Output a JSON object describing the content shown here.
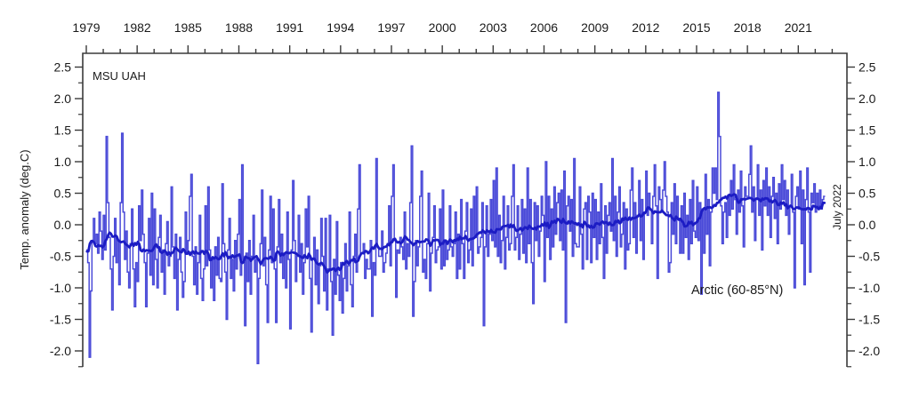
{
  "chart_data": {
    "type": "line",
    "title": "MSU UAH",
    "region_label": "Arctic (60-85°N)",
    "end_label": "July 2022",
    "ylabel": "Temp. anomaly (deg.C)",
    "x_start": "1979-01",
    "x_end": "2022-07",
    "xlim": [
      1978.79,
      2023.87
    ],
    "ylim": [
      -2.25,
      2.72
    ],
    "x_major_ticks": [
      1979,
      1982,
      1985,
      1988,
      1991,
      1994,
      1997,
      2000,
      2003,
      2006,
      2009,
      2012,
      2015,
      2018,
      2021
    ],
    "x_minor_tick_years": [
      1979,
      2023
    ],
    "y_major_ticks": [
      2.5,
      2.0,
      1.5,
      1.0,
      0.5,
      0.0,
      -0.5,
      -1.0,
      -1.5,
      -2.0
    ],
    "y_minor_tick_step": 0.25,
    "grid": false,
    "legend": "none",
    "axis_color": "#3a3a3a",
    "text_color": "#1a1a1a",
    "series": [
      {
        "name": "monthly-temperature-anomaly",
        "style": "thin-step",
        "color": "#4a4ad8",
        "values": [
          -0.4,
          -0.6,
          -2.1,
          -1.05,
          -0.25,
          0.1,
          -0.3,
          -0.15,
          -0.45,
          0.2,
          -0.1,
          -0.55,
          0.15,
          -0.4,
          1.4,
          0.35,
          -0.2,
          -0.7,
          -1.35,
          -0.5,
          0.1,
          -0.6,
          -0.25,
          -0.95,
          0.35,
          1.45,
          0.2,
          -0.55,
          -0.1,
          -0.75,
          -1.0,
          -0.3,
          0.25,
          -0.7,
          -1.3,
          -0.6,
          -0.9,
          0.3,
          -0.25,
          0.55,
          -0.15,
          -0.6,
          -1.3,
          -0.45,
          0.1,
          -0.8,
          0.5,
          -0.95,
          0.25,
          -0.55,
          -1.0,
          -0.2,
          0.15,
          -0.75,
          -0.4,
          -1.1,
          -0.3,
          0.05,
          -0.65,
          -0.5,
          0.6,
          -0.35,
          -0.85,
          -0.15,
          -1.35,
          -0.55,
          -0.2,
          -0.75,
          -1.15,
          -0.9,
          0.2,
          -0.45,
          -0.25,
          0.45,
          0.8,
          -0.5,
          -0.95,
          -0.35,
          -1.1,
          -0.6,
          0.15,
          -0.85,
          -1.2,
          -0.7,
          0.3,
          -0.65,
          0.6,
          -0.4,
          -1.0,
          -0.55,
          -1.2,
          -0.35,
          -0.8,
          -0.2,
          -0.85,
          -0.9,
          0.65,
          -0.3,
          -0.75,
          -1.5,
          -0.4,
          0.1,
          -0.85,
          -0.55,
          -1.05,
          -0.25,
          -0.7,
          -0.15,
          0.4,
          -0.8,
          0.95,
          -0.6,
          -1.6,
          -0.45,
          -0.9,
          -0.25,
          -1.1,
          -0.5,
          0.15,
          -0.75,
          -0.55,
          -2.2,
          -0.85,
          -0.3,
          0.55,
          -0.65,
          -0.2,
          -0.95,
          -1.55,
          -0.4,
          0.45,
          -0.6,
          0.25,
          -0.7,
          -1.55,
          -0.35,
          0.4,
          -0.6,
          -0.15,
          -0.85,
          -0.45,
          -1.0,
          0.2,
          -0.55,
          -1.65,
          -0.4,
          0.7,
          -0.25,
          -0.9,
          -0.5,
          0.15,
          -0.75,
          -0.3,
          -1.1,
          -0.6,
          0.25,
          -0.35,
          0.45,
          -0.85,
          -1.7,
          -0.55,
          -0.2,
          -0.95,
          -0.4,
          -1.25,
          -0.65,
          0.1,
          -0.5,
          -1.05,
          0.1,
          -1.35,
          -0.7,
          0.15,
          -0.9,
          -1.75,
          -0.55,
          -1.1,
          0.05,
          -0.8,
          -1.2,
          -0.6,
          -1.4,
          -0.85,
          -0.3,
          -1.05,
          -0.65,
          0.2,
          -0.95,
          -1.3,
          -0.5,
          -0.15,
          -0.75,
          0.25,
          0.95,
          -0.45,
          -0.45,
          -0.3,
          -0.85,
          -0.55,
          -0.7,
          -0.7,
          -0.25,
          -1.45,
          -0.6,
          -0.8,
          1.05,
          -0.35,
          -0.5,
          -0.5,
          -0.1,
          -0.75,
          -0.6,
          -0.45,
          -0.3,
          0.3,
          -0.65,
          0.45,
          0.95,
          -0.25,
          -1.15,
          -0.4,
          -0.45,
          -0.2,
          -0.35,
          -0.55,
          0.2,
          -0.7,
          -0.3,
          -0.5,
          0.35,
          1.25,
          -1.45,
          -0.9,
          -0.25,
          -0.65,
          -0.35,
          0.45,
          0.85,
          -0.75,
          -0.55,
          -0.85,
          -0.3,
          0.5,
          -1.05,
          -0.45,
          -0.2,
          0.3,
          -0.6,
          -0.4,
          -0.35,
          0.25,
          -0.7,
          0.55,
          -0.65,
          -0.25,
          -0.55,
          -0.4,
          0.3,
          -0.35,
          -0.5,
          -0.3,
          0.2,
          -0.85,
          -0.15,
          -0.7,
          0.4,
          -0.3,
          -0.85,
          -0.1,
          0.35,
          -0.6,
          -0.4,
          0.25,
          -0.65,
          0.45,
          -0.2,
          0.6,
          -0.45,
          -0.35,
          -0.2,
          0.35,
          -1.6,
          -0.35,
          0.3,
          -0.5,
          -0.15,
          0.4,
          -0.25,
          0.7,
          -0.35,
          0.9,
          -0.5,
          0.15,
          -0.6,
          -0.25,
          0.45,
          -0.7,
          -0.2,
          0.3,
          -0.4,
          -0.3,
          0.45,
          0.95,
          -0.4,
          -0.2,
          0.3,
          -0.55,
          -0.15,
          0.4,
          -0.45,
          0.25,
          -0.6,
          0.9,
          -0.3,
          0.4,
          -0.6,
          -1.25,
          0.35,
          -0.25,
          0.3,
          -0.5,
          -0.1,
          0.45,
          0.15,
          -0.9,
          1.0,
          -0.2,
          0.45,
          -0.55,
          0.25,
          -0.35,
          0.6,
          -0.15,
          0.35,
          0.5,
          -0.25,
          0.55,
          -0.4,
          0.85,
          -1.55,
          0.3,
          0.45,
          -0.1,
          0.4,
          -0.5,
          1.05,
          -0.3,
          -0.35,
          -0.35,
          0.6,
          -0.15,
          -0.7,
          0.25,
          0.35,
          -0.55,
          0.45,
          0.2,
          -0.6,
          0.5,
          -0.2,
          0.4,
          -0.55,
          0.2,
          -0.3,
          0.65,
          -0.2,
          -0.85,
          0.3,
          -0.45,
          0.15,
          0.35,
          -0.1,
          1.05,
          -0.25,
          0.45,
          -0.5,
          0.2,
          0.6,
          -0.35,
          -0.15,
          0.35,
          -0.7,
          0.25,
          -0.4,
          -0.3,
          0.55,
          0.9,
          -0.2,
          0.35,
          -0.45,
          0.15,
          0.7,
          -0.25,
          0.4,
          -0.55,
          0.2,
          0.85,
          0.15,
          0.5,
          0.25,
          -0.3,
          0.45,
          0.95,
          0.3,
          -0.85,
          0.6,
          0.4,
          0.2,
          0.55,
          1.0,
          0.45,
          0.2,
          -0.75,
          -0.6,
          0.35,
          -0.15,
          0.65,
          -0.3,
          0.45,
          0.1,
          -0.45,
          0.3,
          -0.45,
          0.5,
          -0.2,
          0.15,
          -0.55,
          0.4,
          -0.3,
          0.7,
          -0.1,
          -0.2,
          0.6,
          -0.25,
          0.35,
          -1.1,
          0.25,
          -0.45,
          0.8,
          -0.15,
          0.4,
          -0.65,
          0.2,
          0.9,
          0.5,
          0.9,
          0.4,
          2.1,
          1.4,
          0.3,
          -0.3,
          0.2,
          0.35,
          -0.2,
          0.45,
          0.15,
          0.7,
          0.25,
          0.95,
          0.4,
          -0.15,
          0.55,
          0.2,
          0.85,
          0.3,
          -0.35,
          0.6,
          0.45,
          0.45,
          0.8,
          1.25,
          0.2,
          0.6,
          -0.25,
          0.4,
          0.95,
          0.15,
          0.55,
          -0.4,
          0.7,
          0.3,
          0.9,
          0.15,
          0.6,
          -0.2,
          0.45,
          0.75,
          0.1,
          0.5,
          -0.3,
          0.65,
          0.25,
          0.95,
          0.4,
          0.7,
          0.15,
          0.55,
          -0.15,
          0.3,
          0.8,
          0.2,
          -1.0,
          0.45,
          0.6,
          0.25,
          0.85,
          -0.3,
          0.55,
          -0.95,
          0.4,
          0.9,
          0.2,
          -0.75,
          0.5,
          0.35,
          0.65,
          0.2,
          0.5,
          0.3,
          0.55,
          0.25,
          0.4,
          0.45
        ]
      },
      {
        "name": "running-mean",
        "style": "thick-smooth",
        "color": "#1c1cc4",
        "derived": "centered moving average of monthly-temperature-anomaly",
        "window_months": 25
      }
    ]
  }
}
